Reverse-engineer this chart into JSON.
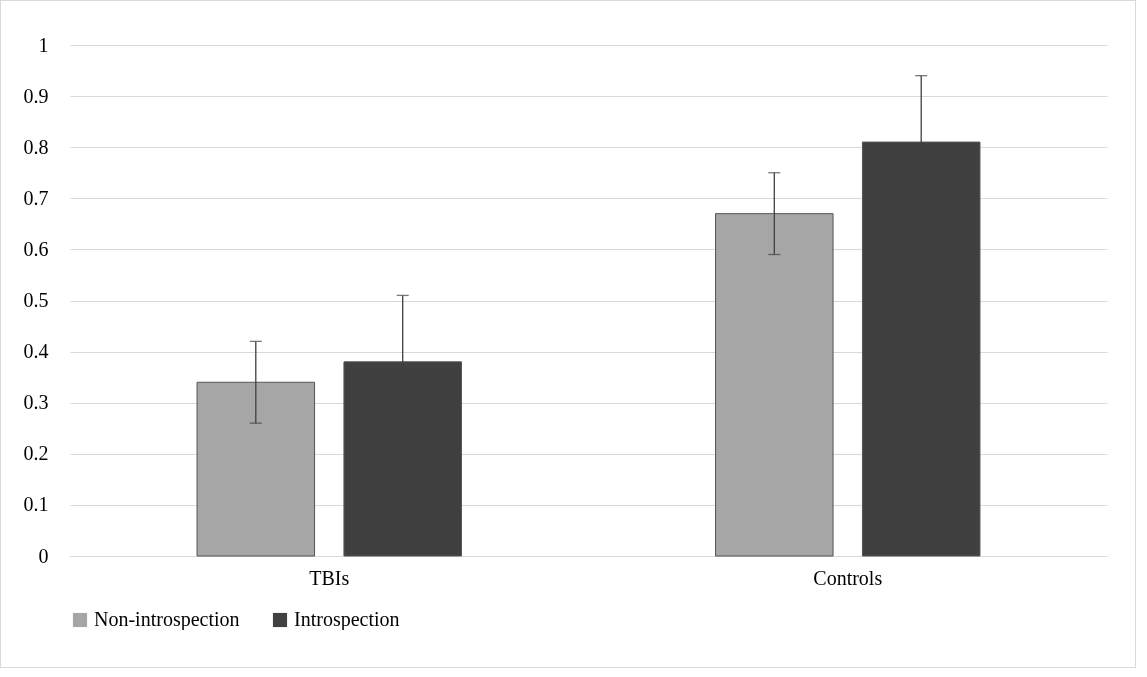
{
  "chart_data": {
    "type": "bar",
    "categories": [
      "TBIs",
      "Controls"
    ],
    "series": [
      {
        "name": "Non-introspection",
        "color": "#a6a6a6",
        "values": [
          0.34,
          0.67
        ],
        "errors": [
          0.08,
          0.08
        ]
      },
      {
        "name": "Introspection",
        "color": "#404040",
        "values": [
          0.38,
          0.81
        ],
        "errors": [
          0.13,
          0.13
        ]
      }
    ],
    "ylim": [
      0,
      1
    ],
    "yticks": [
      0,
      0.1,
      0.2,
      0.3,
      0.4,
      0.5,
      0.6,
      0.7,
      0.8,
      0.9,
      1
    ],
    "grid": "y",
    "legend": "bottom"
  }
}
